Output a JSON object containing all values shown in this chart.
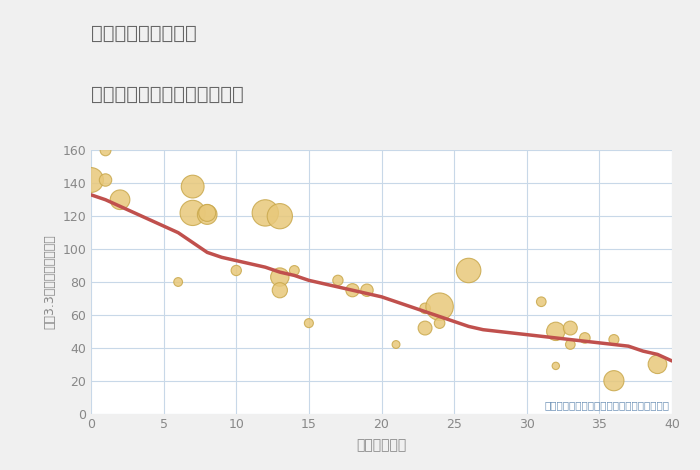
{
  "title_line1": "奈良県奈良市針町の",
  "title_line2": "築年数別中古マンション価格",
  "xlabel": "築年数（年）",
  "ylabel": "坪（3.3㎡）単価（万円）",
  "annotation": "円の大きさは、取引のあった物件面積を示す",
  "xlim": [
    0,
    40
  ],
  "ylim": [
    0,
    160
  ],
  "xticks": [
    0,
    5,
    10,
    15,
    20,
    25,
    30,
    35,
    40
  ],
  "yticks": [
    0,
    20,
    40,
    60,
    80,
    100,
    120,
    140,
    160
  ],
  "background_color": "#f0f0f0",
  "plot_bg_color": "#ffffff",
  "grid_color": "#c8d8e8",
  "bubble_color": "#e8c87a",
  "bubble_edge_color": "#c9a84c",
  "line_color": "#c0504d",
  "title_color": "#666666",
  "axis_label_color": "#888888",
  "tick_color": "#888888",
  "annotation_color": "#6a8fb5",
  "scatter_x": [
    0,
    1,
    1,
    2,
    6,
    7,
    7,
    8,
    8,
    10,
    12,
    13,
    13,
    13,
    14,
    15,
    17,
    18,
    19,
    21,
    23,
    23,
    24,
    24,
    26,
    31,
    32,
    32,
    33,
    33,
    34,
    36,
    36,
    39
  ],
  "scatter_y": [
    142,
    160,
    142,
    130,
    80,
    138,
    122,
    121,
    122,
    87,
    122,
    120,
    83,
    75,
    87,
    55,
    81,
    75,
    75,
    42,
    64,
    52,
    65,
    55,
    87,
    68,
    50,
    29,
    52,
    42,
    46,
    20,
    45,
    30
  ],
  "scatter_size": [
    320,
    60,
    80,
    200,
    40,
    270,
    330,
    200,
    150,
    55,
    360,
    330,
    175,
    120,
    50,
    42,
    55,
    90,
    80,
    32,
    58,
    100,
    390,
    58,
    310,
    48,
    175,
    28,
    100,
    48,
    58,
    210,
    52,
    180
  ],
  "trend_x": [
    0,
    1,
    2,
    3,
    4,
    5,
    6,
    7,
    8,
    9,
    10,
    11,
    12,
    13,
    14,
    15,
    16,
    17,
    18,
    19,
    20,
    21,
    22,
    23,
    24,
    25,
    26,
    27,
    28,
    29,
    30,
    31,
    32,
    33,
    34,
    35,
    36,
    37,
    38,
    39,
    40
  ],
  "trend_y": [
    133,
    130,
    126,
    122,
    118,
    114,
    110,
    104,
    98,
    95,
    93,
    91,
    89,
    86,
    84,
    81,
    79,
    77,
    75,
    73,
    71,
    68,
    65,
    62,
    59,
    56,
    53,
    51,
    50,
    49,
    48,
    47,
    46,
    45,
    44,
    43,
    42,
    41,
    38,
    36,
    32
  ]
}
